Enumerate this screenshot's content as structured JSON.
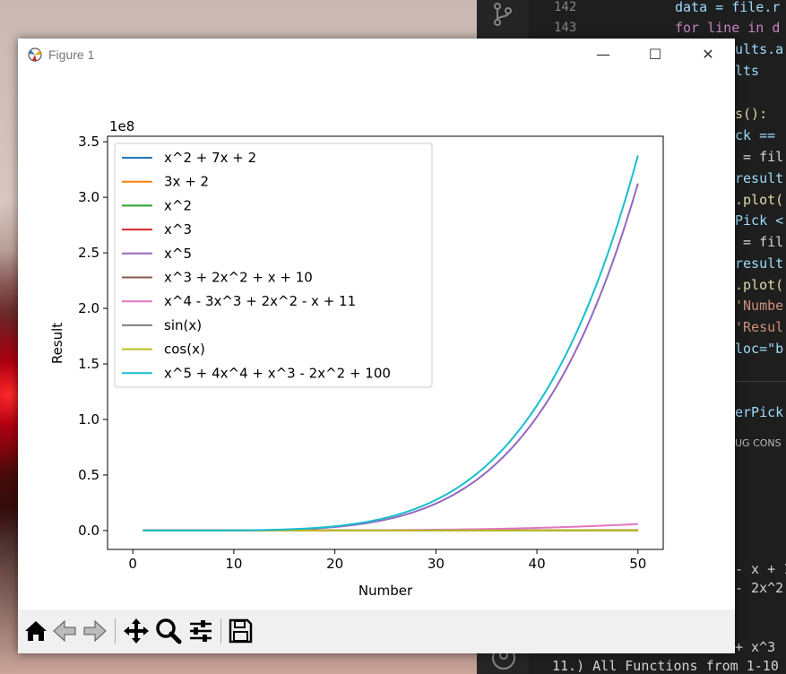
{
  "window": {
    "title": "Figure 1"
  },
  "window_controls": {
    "minimize": "—",
    "maximize": "☐",
    "close": "✕"
  },
  "editor": {
    "line_numbers": [
      "142",
      "143"
    ],
    "code_lines": [
      "data = file.r",
      "for line in d",
      "ults.a",
      "lts",
      "s():",
      "ck ==",
      " = fil",
      "result",
      ".plot(",
      "Pick <",
      " = fil",
      "result",
      ".plot(",
      "'Numbe",
      "'Resul",
      "loc=\"b",
      "erPick",
      "UG CONS",
      "- x + 1",
      "- 2x^2",
      "+ x^3",
      "11.) All Functions from 1-10"
    ]
  },
  "chart_data": {
    "type": "line",
    "xlabel": "Number",
    "ylabel": "Result",
    "y_multiplier": "1e8",
    "xlim": [
      -2.5,
      52.5
    ],
    "ylim": [
      -17000000.0,
      355000000.0
    ],
    "x_ticks": [
      0,
      10,
      20,
      30,
      40,
      50
    ],
    "x_tick_labels": [
      "0",
      "10",
      "20",
      "30",
      "40",
      "50"
    ],
    "y_ticks": [
      0,
      50000000.0,
      100000000.0,
      150000000.0,
      200000000.0,
      250000000.0,
      300000000.0,
      350000000.0
    ],
    "y_tick_labels": [
      "0.0",
      "0.5",
      "1.0",
      "1.5",
      "2.0",
      "2.5",
      "3.0",
      "3.5"
    ],
    "x_range": [
      1,
      50
    ],
    "legend_position": "upper-left",
    "grid": false,
    "series": [
      {
        "name": "x^2 + 7x + 2",
        "color": "#1f77b4",
        "coeffs": [
          2,
          7,
          1
        ]
      },
      {
        "name": "3x + 2",
        "color": "#ff7f0e",
        "coeffs": [
          2,
          3
        ]
      },
      {
        "name": "x^2",
        "color": "#2ca02c",
        "coeffs": [
          0,
          0,
          1
        ]
      },
      {
        "name": "x^3",
        "color": "#d62728",
        "coeffs": [
          0,
          0,
          0,
          1
        ]
      },
      {
        "name": "x^5",
        "color": "#9467bd",
        "coeffs": [
          0,
          0,
          0,
          0,
          0,
          1
        ]
      },
      {
        "name": "x^3 + 2x^2 + x + 10",
        "color": "#8c564b",
        "coeffs": [
          10,
          1,
          2,
          1
        ]
      },
      {
        "name": "x^4 - 3x^3 + 2x^2 - x + 11",
        "color": "#e377c2",
        "coeffs": [
          11,
          -1,
          2,
          -3,
          1
        ]
      },
      {
        "name": "sin(x)",
        "color": "#7f7f7f",
        "fn": "sin"
      },
      {
        "name": "cos(x)",
        "color": "#bcbd22",
        "fn": "cos"
      },
      {
        "name": "x^5 + 4x^4 + x^3 - 2x^2 + 100",
        "color": "#17becf",
        "coeffs": [
          100,
          0,
          -2,
          1,
          4,
          1
        ]
      }
    ]
  },
  "toolbar_icons": [
    "home-icon",
    "back-icon",
    "forward-icon",
    "pan-icon",
    "zoom-icon",
    "configure-subplots-icon",
    "save-icon"
  ]
}
